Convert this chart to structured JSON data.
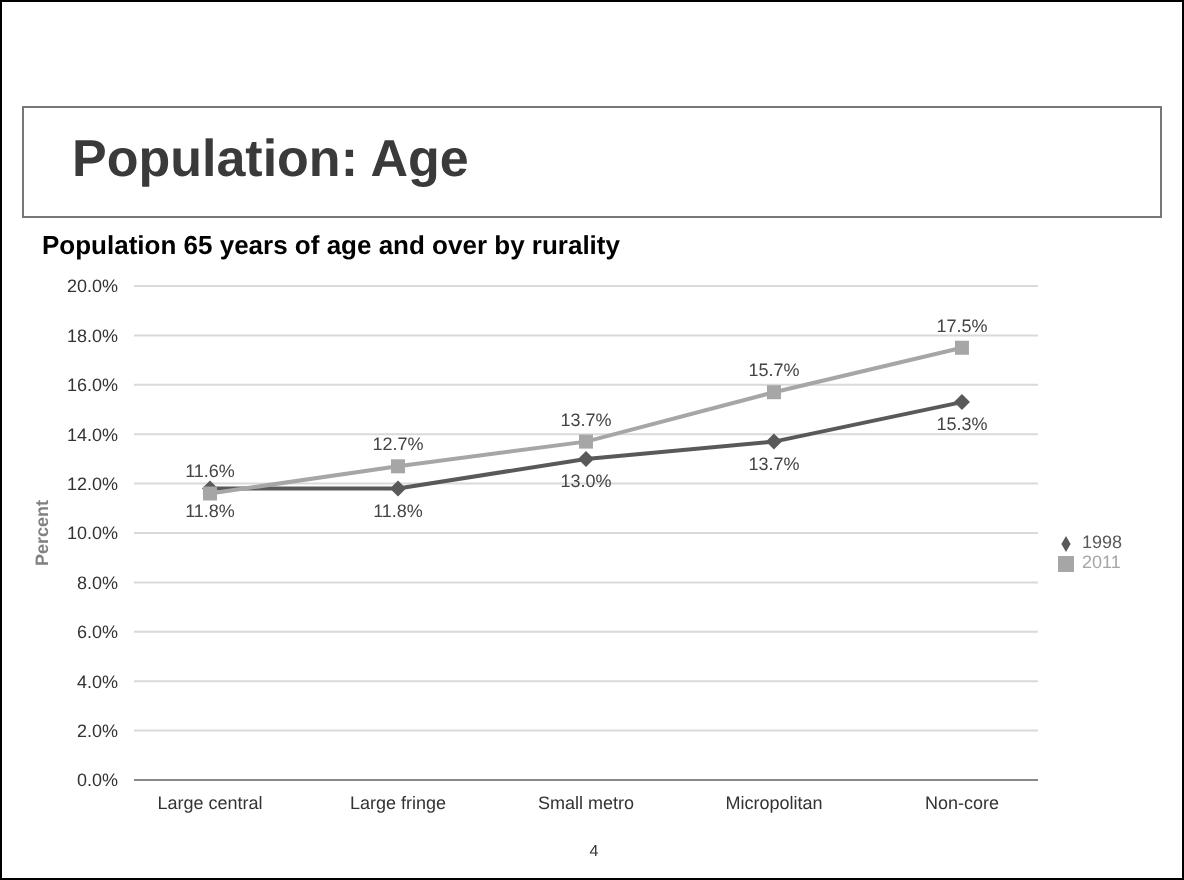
{
  "chart_data": {
    "type": "line",
    "title": "Population: Age",
    "subtitle": "Population 65 years of age and over by rurality",
    "ylabel": "Percent",
    "categories": [
      "Large central",
      "Large fringe",
      "Small metro",
      "Micropolitan",
      "Non-core"
    ],
    "series": [
      {
        "name": "1998",
        "color": "#595959",
        "marker": "diamond",
        "values": [
          11.8,
          11.8,
          13.0,
          13.7,
          15.3
        ],
        "value_labels": [
          "11.8%",
          "11.8%",
          "13.0%",
          "13.7%",
          "15.3%"
        ]
      },
      {
        "name": "2011",
        "color": "#a6a6a6",
        "marker": "square",
        "values": [
          11.6,
          12.7,
          13.7,
          15.7,
          17.5
        ],
        "value_labels": [
          "11.6%",
          "12.7%",
          "13.7%",
          "15.7%",
          "17.5%"
        ]
      }
    ],
    "ylim": [
      0,
      20
    ],
    "yticks": [
      {
        "value": 0,
        "label": "0.0%"
      },
      {
        "value": 2,
        "label": "2.0%"
      },
      {
        "value": 4,
        "label": "4.0%"
      },
      {
        "value": 6,
        "label": "6.0%"
      },
      {
        "value": 8,
        "label": "8.0%"
      },
      {
        "value": 10,
        "label": "10.0%"
      },
      {
        "value": 12,
        "label": "12.0%"
      },
      {
        "value": 14,
        "label": "14.0%"
      },
      {
        "value": 16,
        "label": "16.0%"
      },
      {
        "value": 18,
        "label": "18.0%"
      },
      {
        "value": 20,
        "label": "20.0%"
      }
    ],
    "grid": "y",
    "legend": "right",
    "line_style": "solid",
    "annotations": [
      "4"
    ]
  }
}
